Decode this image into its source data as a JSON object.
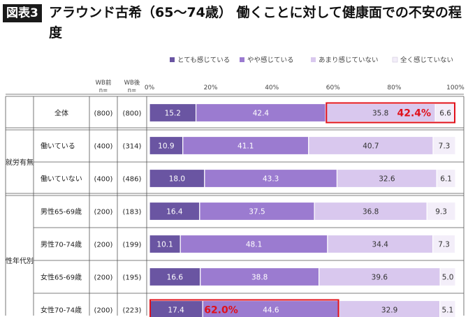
{
  "header": {
    "badge": "図表3",
    "title": "アラウンド古希（65〜74歳） 働くことに対して健康面での不安の程度"
  },
  "colors": {
    "series": [
      "#6a55a2",
      "#9b7bd0",
      "#d9c8ee",
      "#f3eef9"
    ],
    "highlight": "#e0101a",
    "frame": "#555555"
  },
  "chart_data": {
    "type": "bar",
    "orientation": "horizontal",
    "stacked": true,
    "xlim": [
      0,
      100
    ],
    "x_ticks": [
      "0%",
      "20%",
      "40%",
      "60%",
      "80%",
      "100%"
    ],
    "legend_position": "top",
    "series": [
      {
        "name": "とても感じている",
        "values": [
          15.2,
          10.9,
          18.0,
          16.4,
          10.1,
          16.6,
          17.4
        ]
      },
      {
        "name": "やや感じている",
        "values": [
          42.4,
          41.1,
          43.3,
          37.5,
          48.1,
          38.8,
          44.6
        ]
      },
      {
        "name": "あまり感じていない",
        "values": [
          35.8,
          40.7,
          32.6,
          36.8,
          34.4,
          39.6,
          32.9
        ]
      },
      {
        "name": "全く感じていない",
        "values": [
          6.6,
          7.3,
          6.1,
          9.3,
          7.3,
          5.0,
          5.1
        ]
      }
    ],
    "column_headers": [
      [
        "WB前",
        "n="
      ],
      [
        "WB後",
        "n="
      ]
    ],
    "groups": [
      {
        "label": "",
        "rows": [
          0
        ]
      },
      {
        "label": "就労有無",
        "rows": [
          1,
          2
        ]
      },
      {
        "label": "性年代別",
        "rows": [
          3,
          4,
          5,
          6
        ]
      }
    ],
    "rows": [
      {
        "label": "全体",
        "n_before": "(800)",
        "n_after": "(800)"
      },
      {
        "label": "働いている",
        "n_before": "(400)",
        "n_after": "(314)"
      },
      {
        "label": "働いていない",
        "n_before": "(400)",
        "n_after": "(486)"
      },
      {
        "label": "男性65-69歳",
        "n_before": "(200)",
        "n_after": "(183)"
      },
      {
        "label": "男性70-74歳",
        "n_before": "(200)",
        "n_after": "(199)"
      },
      {
        "label": "女性65-69歳",
        "n_before": "(200)",
        "n_after": "(195)"
      },
      {
        "label": "女性70-74歳",
        "n_before": "(200)",
        "n_after": "(223)"
      }
    ],
    "annotations": [
      {
        "row": 0,
        "series_from": 2,
        "series_to": 3,
        "text": "42.4%"
      },
      {
        "row": 6,
        "series_from": 0,
        "series_to": 1,
        "text": "62.0%"
      }
    ]
  }
}
